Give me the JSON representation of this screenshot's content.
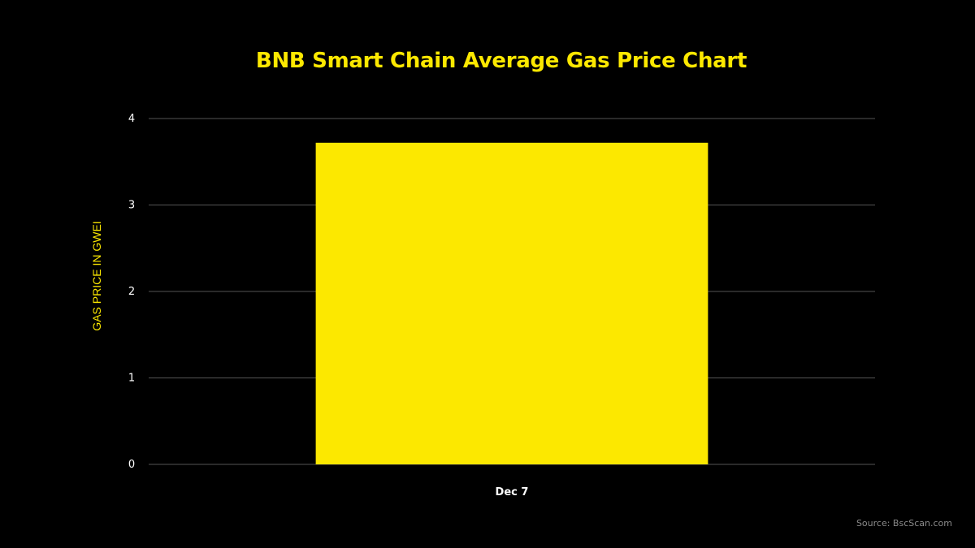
{
  "chart_data": {
    "type": "bar",
    "title": "BNB Smart Chain Average Gas Price Chart",
    "xlabel": "",
    "ylabel": "GAS PRICE IN GWEI",
    "categories": [
      "Dec 7"
    ],
    "values": [
      3.72
    ],
    "ylim": [
      0,
      4
    ],
    "yticks": [
      "0",
      "1",
      "2",
      "3",
      "4"
    ],
    "grid": true,
    "bar_color": "#FCE800",
    "grid_color": "#555555",
    "source": "Source: BscScan.com"
  }
}
